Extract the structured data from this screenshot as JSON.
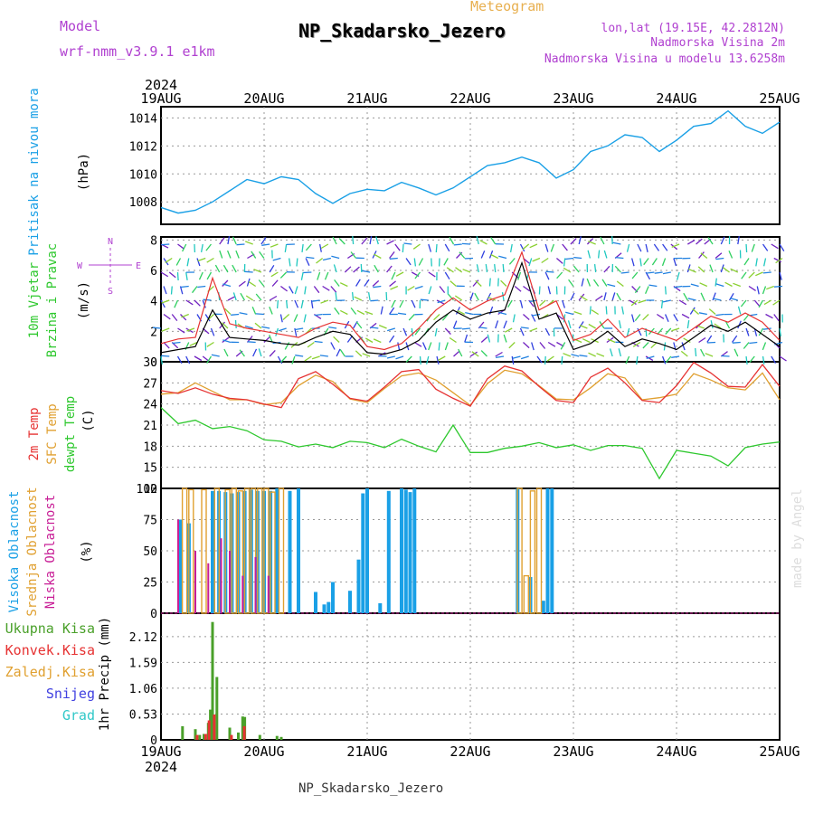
{
  "header": {
    "meteogram": "Meteogram",
    "title": "NP_Skadarsko_Jezero",
    "model_label": "Model",
    "model_value": "wrf-nmm_v3.9.1 e1km",
    "lonlat": "lon,lat (19.15E, 42.2812N)",
    "alt1": "Nadmorska Visina 2m",
    "alt2": "Nadmorska Visina u modelu 13.6258m",
    "footer": "NP_Skadarsko_Jezero",
    "credit": "made by Angel",
    "year": "2024"
  },
  "colors": {
    "pressure": "#1aa0e6",
    "temp2m": "#e63232",
    "sfc_temp": "#e0a030",
    "dewpt": "#2ec82e",
    "wind_speed_line": "#000000",
    "wind_gust": "#e63232",
    "high_cloud": "#1aa0e6",
    "mid_cloud": "#e0a030",
    "low_cloud": "#c81e96",
    "precip_total": "#4aa02a",
    "precip_conv": "#e63232",
    "purple_text": "#b040d0"
  },
  "chart_data": [
    {
      "type": "line",
      "panel": "pressure",
      "ylabel": [
        "Pritisak na nivou mora",
        "(hPa)"
      ],
      "yticks": [
        1008,
        1010,
        1012,
        1014
      ],
      "ylim": [
        1006.4,
        1014.8
      ],
      "x": [
        0,
        4,
        8,
        12,
        16,
        20,
        24,
        28,
        32,
        36,
        40,
        44,
        48,
        52,
        56,
        60,
        64,
        68,
        72,
        76,
        80,
        84,
        88,
        92,
        96,
        100,
        104,
        108,
        112,
        116,
        120,
        124,
        128,
        132,
        136,
        140,
        144
      ],
      "series": [
        {
          "values": [
            1007.6,
            1007.2,
            1007.4,
            1008.0,
            1008.8,
            1009.6,
            1009.3,
            1009.8,
            1009.6,
            1008.6,
            1007.9,
            1008.6,
            1008.9,
            1008.8,
            1009.4,
            1009.0,
            1008.5,
            1009.0,
            1009.8,
            1010.6,
            1010.8,
            1011.2,
            1010.8,
            1009.7,
            1010.3,
            1011.6,
            1012.0,
            1012.8,
            1012.6,
            1011.6,
            1012.4,
            1013.4,
            1013.6,
            1014.5,
            1013.4,
            1012.9,
            1013.7
          ]
        }
      ]
    },
    {
      "type": "line",
      "panel": "wind",
      "ylabel": [
        "10m Vjetar",
        "Brzina i Pravac",
        "(m/s)"
      ],
      "yticks": [
        0,
        2,
        4,
        6,
        8
      ],
      "ylim": [
        0,
        8.2
      ],
      "x": [
        0,
        4,
        8,
        12,
        16,
        20,
        24,
        28,
        32,
        36,
        40,
        44,
        48,
        52,
        56,
        60,
        64,
        68,
        72,
        76,
        80,
        84,
        88,
        92,
        96,
        100,
        104,
        108,
        112,
        116,
        120,
        124,
        128,
        132,
        136,
        140,
        144
      ],
      "series": [
        {
          "name": "speed",
          "values": [
            0.6,
            0.8,
            1.0,
            3.4,
            1.6,
            1.5,
            1.4,
            1.2,
            1.1,
            1.6,
            2.0,
            1.8,
            0.6,
            0.5,
            0.8,
            1.4,
            2.6,
            3.4,
            2.8,
            3.2,
            3.4,
            6.5,
            2.8,
            3.2,
            0.8,
            1.2,
            2.0,
            1.0,
            1.5,
            1.2,
            0.8,
            1.6,
            2.4,
            2.0,
            2.6,
            1.8,
            1.0
          ]
        },
        {
          "name": "gust",
          "values": [
            1.2,
            1.5,
            1.6,
            5.5,
            2.5,
            2.2,
            2.0,
            1.8,
            1.6,
            2.2,
            2.6,
            2.4,
            1.0,
            0.8,
            1.2,
            2.2,
            3.4,
            4.2,
            3.4,
            4.0,
            4.4,
            7.2,
            3.4,
            4.0,
            1.4,
            1.8,
            2.8,
            1.6,
            2.2,
            1.8,
            1.4,
            2.2,
            3.0,
            2.6,
            3.2,
            2.6,
            1.4
          ]
        }
      ],
      "compass_labels": [
        "N",
        "S",
        "W",
        "E"
      ]
    },
    {
      "type": "line",
      "panel": "temperature",
      "ylabel": [
        "2m Temp",
        "SFC Temp",
        "dewpt Temp",
        "(C)"
      ],
      "yticks": [
        12,
        15,
        18,
        21,
        24,
        27,
        30
      ],
      "ylim": [
        12,
        30
      ],
      "x": [
        0,
        4,
        8,
        12,
        16,
        20,
        24,
        28,
        32,
        36,
        40,
        44,
        48,
        52,
        56,
        60,
        64,
        68,
        72,
        76,
        80,
        84,
        88,
        92,
        96,
        100,
        104,
        108,
        112,
        116,
        120,
        124,
        128,
        132,
        136,
        140,
        144
      ],
      "series": [
        {
          "name": "2m Temp",
          "values": [
            25.9,
            25.5,
            26.3,
            25.4,
            24.8,
            24.6,
            24.0,
            23.5,
            27.6,
            28.6,
            26.8,
            24.8,
            24.4,
            26.4,
            28.6,
            28.9,
            26.1,
            24.8,
            23.7,
            27.6,
            29.4,
            28.7,
            26.5,
            24.5,
            24.2,
            27.8,
            29.1,
            27.0,
            24.5,
            24.2,
            26.6,
            29.9,
            28.4,
            26.5,
            26.4,
            29.6,
            26.5
          ]
        },
        {
          "name": "SFC Temp",
          "values": [
            25.4,
            25.6,
            27.0,
            25.8,
            24.6,
            24.6,
            23.9,
            24.2,
            26.6,
            28.1,
            27.2,
            24.7,
            24.2,
            26.2,
            28.0,
            28.4,
            27.4,
            25.6,
            23.8,
            26.9,
            28.8,
            28.3,
            26.6,
            24.7,
            24.6,
            26.3,
            28.3,
            27.7,
            24.6,
            24.9,
            25.4,
            28.3,
            27.4,
            26.3,
            26.0,
            28.4,
            24.6
          ]
        },
        {
          "name": "dewpt Temp",
          "values": [
            23.5,
            21.2,
            21.7,
            20.5,
            20.8,
            20.2,
            18.9,
            18.7,
            17.9,
            18.3,
            17.8,
            18.7,
            18.5,
            17.8,
            19.0,
            18.0,
            17.2,
            21.0,
            17.1,
            17.1,
            17.7,
            18.0,
            18.5,
            17.8,
            18.2,
            17.4,
            18.1,
            18.1,
            17.7,
            13.4,
            17.4,
            17.0,
            16.6,
            15.2,
            17.8,
            18.3,
            18.6
          ]
        }
      ]
    },
    {
      "type": "bar",
      "panel": "clouds",
      "ylabel": [
        "Visoka Oblacnost",
        "Srednja Oblacnost",
        "Niska Oblacnost",
        "(%)"
      ],
      "yticks": [
        0,
        25,
        50,
        75,
        100
      ],
      "ylim": [
        0,
        100
      ],
      "series": [
        {
          "name": "Visoka Oblacnost",
          "x": [
            4.5,
            6.5,
            12,
            13.5,
            15,
            16.5,
            18,
            19.5,
            21,
            22.5,
            24,
            25.5,
            27,
            30,
            32,
            36,
            38,
            39,
            40,
            44,
            46,
            47,
            48,
            51,
            53,
            56,
            57,
            58,
            59,
            83,
            86,
            89,
            90,
            91
          ],
          "values": [
            75,
            72,
            98,
            98,
            97,
            96,
            97,
            98,
            99,
            98,
            98,
            98,
            100,
            98,
            100,
            17,
            7,
            9,
            25,
            18,
            43,
            96,
            100,
            8,
            98,
            100,
            99,
            97,
            100,
            100,
            29,
            10,
            100,
            100
          ]
        },
        {
          "name": "Srednja Oblacnost",
          "x": [
            5.5,
            7,
            10,
            13,
            15.5,
            17,
            18.5,
            20,
            21.5,
            23,
            24.5,
            26,
            28,
            83.5,
            85,
            86.5,
            88
          ],
          "values": [
            100,
            99,
            99,
            100,
            99,
            100,
            98,
            100,
            100,
            100,
            100,
            97,
            100,
            100,
            30,
            98,
            100
          ]
        },
        {
          "name": "Niska Oblacnost",
          "x": [
            4,
            8,
            11,
            14,
            16,
            19,
            22,
            25
          ],
          "values": [
            75,
            50,
            40,
            60,
            50,
            30,
            45,
            30
          ]
        }
      ]
    },
    {
      "type": "bar",
      "panel": "precip",
      "ylabel": [
        "1hr Precip (mm)"
      ],
      "yticks": [
        0,
        0.53,
        1.06,
        1.59,
        2.12
      ],
      "ylim": [
        0,
        2.6
      ],
      "legend": [
        "Ukupna Kisa",
        "Konvek.Kisa",
        "Zaledj.Kisa",
        "Snijeg",
        "Grad"
      ],
      "series": [
        {
          "name": "Ukupna Kisa",
          "x": [
            5,
            8,
            9,
            10,
            11,
            11.5,
            12,
            13,
            16,
            18,
            19,
            19.5,
            23,
            27,
            28
          ],
          "values": [
            0.28,
            0.22,
            0.1,
            0.12,
            0.35,
            0.62,
            2.42,
            1.29,
            0.25,
            0.15,
            0.48,
            0.47,
            0.1,
            0.08,
            0.06
          ]
        },
        {
          "name": "Konvek.Kisa",
          "x": [
            8.4,
            10.4,
            11.2,
            12.4,
            16.4,
            19.4
          ],
          "values": [
            0.1,
            0.12,
            0.4,
            0.52,
            0.1,
            0.28
          ]
        }
      ]
    }
  ],
  "xaxis": {
    "labels": [
      "19AUG",
      "20AUG",
      "21AUG",
      "22AUG",
      "23AUG",
      "24AUG",
      "25AUG"
    ],
    "range_hours": [
      0,
      144
    ]
  }
}
